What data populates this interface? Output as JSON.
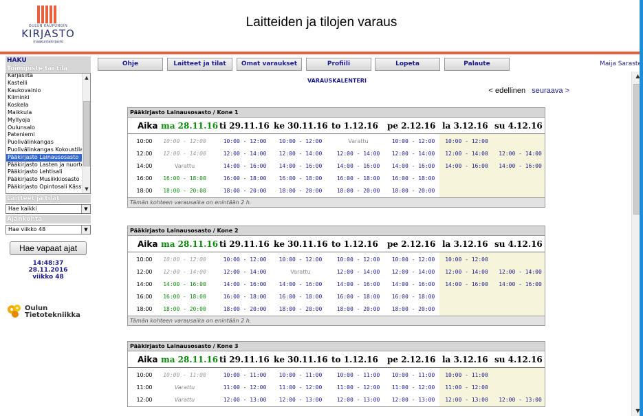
{
  "header": {
    "logo_small": "OULUN KAUPUNGIN",
    "logo_main": "KIRJASTO",
    "logo_sub": "maakuntakirjasto",
    "title": "Laitteiden ja tilojen varaus"
  },
  "sidebar": {
    "haku": "HAKU",
    "location_label": "Toimipiste tai tila",
    "locations": [
      "Karjasilta",
      "Kastelli",
      "Kaukovainio",
      "Kiiminki",
      "Koskela",
      "Maikkula",
      "Myllyoja",
      "Oulunsalo",
      "Pateniemi",
      "Puolivälinkangas",
      "Puolivälinkangas Kokoustila",
      "Pääkirjasto Lainausosasto",
      "Pääkirjasto Lasten ja nuorte",
      "Pääkirjasto Lehtisali",
      "Pääkirjasto Musiikkiosasto",
      "Pääkirjasto Opintosali Kässy"
    ],
    "selected_location": "Pääkirjasto Lainausosasto",
    "devices_label": "Laitteet ja tilat",
    "devices_value": "Hae kaikki",
    "period_label": "Ajankohta",
    "period_value": "Hae viikko 48",
    "search_button": "Hae vapaat ajat",
    "time": "14:48:37",
    "date": "28.11.2016",
    "week": "viikko 48",
    "company_line1": "Oulun",
    "company_line2": "Tietotekniikka"
  },
  "nav": {
    "items": [
      "Ohje",
      "Laitteet ja tilat",
      "Omat varaukset",
      "Profiili",
      "Lopeta",
      "Palaute"
    ],
    "user": "Maija Saraste"
  },
  "calendar": {
    "title": "VARAUSKALENTERI",
    "prev": "< edellinen",
    "next": "seuraava >",
    "aika": "Aika",
    "days": [
      "ma 28.11.16",
      "ti 29.11.16",
      "ke 30.11.16",
      "to 1.12.16",
      "pe 2.12.16",
      "la 3.12.16",
      "su 4.12.16"
    ],
    "footer": "Tämän kohteen varausaika on enintään 2 h.",
    "blocks": [
      {
        "title": "Pääkirjasto Lainausosasto / Kone 1",
        "rows": [
          {
            "time": "10:00",
            "cells": [
              "10:00 - 12:00",
              "10:00 - 12:00",
              "10:00 - 12:00",
              "Varattu",
              "10:00 - 12:00",
              "10:00 - 12:00",
              ""
            ],
            "types": [
              "past",
              "free",
              "free",
              "booked",
              "free",
              "free",
              "empty"
            ]
          },
          {
            "time": "12:00",
            "cells": [
              "12:00 - 14:00",
              "12:00 - 14:00",
              "12:00 - 14:00",
              "12:00 - 14:00",
              "12:00 - 14:00",
              "12:00 - 14:00",
              "12:00 - 14:00"
            ],
            "types": [
              "past",
              "free",
              "free",
              "free",
              "free",
              "free",
              "free"
            ]
          },
          {
            "time": "14:00",
            "cells": [
              "Varattu",
              "14:00 - 16:00",
              "14:00 - 16:00",
              "14:00 - 16:00",
              "14:00 - 16:00",
              "14:00 - 16:00",
              "14:00 - 16:00"
            ],
            "types": [
              "booked",
              "free",
              "free",
              "free",
              "free",
              "free",
              "free"
            ]
          },
          {
            "time": "16:00",
            "cells": [
              "16:00 - 18:00",
              "16:00 - 18:00",
              "16:00 - 18:00",
              "16:00 - 18:00",
              "16:00 - 18:00",
              "",
              ""
            ],
            "types": [
              "green",
              "free",
              "free",
              "free",
              "free",
              "empty",
              "empty"
            ]
          },
          {
            "time": "18:00",
            "cells": [
              "18:00 - 20:00",
              "18:00 - 20:00",
              "18:00 - 20:00",
              "18:00 - 20:00",
              "18:00 - 20:00",
              "",
              ""
            ],
            "types": [
              "green",
              "free",
              "free",
              "free",
              "free",
              "empty",
              "empty"
            ]
          }
        ]
      },
      {
        "title": "Pääkirjasto Lainausosasto / Kone 2",
        "rows": [
          {
            "time": "10:00",
            "cells": [
              "10:00 - 12:00",
              "10:00 - 12:00",
              "10:00 - 12:00",
              "10:00 - 12:00",
              "10:00 - 12:00",
              "10:00 - 12:00",
              ""
            ],
            "types": [
              "past",
              "free",
              "free",
              "free",
              "free",
              "free",
              "empty"
            ]
          },
          {
            "time": "12:00",
            "cells": [
              "12:00 - 14:00",
              "12:00 - 14:00",
              "Varattu",
              "12:00 - 14:00",
              "12:00 - 14:00",
              "12:00 - 14:00",
              "12:00 - 14:00"
            ],
            "types": [
              "past",
              "free",
              "booked",
              "free",
              "free",
              "free",
              "free"
            ]
          },
          {
            "time": "14:00",
            "cells": [
              "14:00 - 16:00",
              "14:00 - 16:00",
              "14:00 - 16:00",
              "14:00 - 16:00",
              "14:00 - 16:00",
              "14:00 - 16:00",
              "14:00 - 16:00"
            ],
            "types": [
              "green",
              "free",
              "free",
              "free",
              "free",
              "free",
              "free"
            ]
          },
          {
            "time": "16:00",
            "cells": [
              "16:00 - 18:00",
              "16:00 - 18:00",
              "16:00 - 18:00",
              "16:00 - 18:00",
              "16:00 - 18:00",
              "",
              ""
            ],
            "types": [
              "green",
              "free",
              "free",
              "free",
              "free",
              "empty",
              "empty"
            ]
          },
          {
            "time": "18:00",
            "cells": [
              "18:00 - 20:00",
              "18:00 - 20:00",
              "18:00 - 20:00",
              "18:00 - 20:00",
              "18:00 - 20:00",
              "",
              ""
            ],
            "types": [
              "green",
              "free",
              "free",
              "free",
              "free",
              "empty",
              "empty"
            ]
          }
        ]
      },
      {
        "title": "Pääkirjasto Lainausosasto / Kone 3",
        "rows": [
          {
            "time": "10:00",
            "cells": [
              "10:00 - 11:00",
              "10:00 - 11:00",
              "10:00 - 11:00",
              "10:00 - 11:00",
              "10:00 - 11:00",
              "10:00 - 11:00",
              ""
            ],
            "types": [
              "past",
              "free",
              "free",
              "free",
              "free",
              "free",
              "empty"
            ]
          },
          {
            "time": "11:00",
            "cells": [
              "Varattu",
              "11:00 - 12:00",
              "11:00 - 12:00",
              "11:00 - 12:00",
              "11:00 - 12:00",
              "11:00 - 12:00",
              ""
            ],
            "types": [
              "booked-past",
              "free",
              "free",
              "free",
              "free",
              "free",
              "empty"
            ]
          },
          {
            "time": "12:00",
            "cells": [
              "Varattu",
              "12:00 - 13:00",
              "12:00 - 13:00",
              "12:00 - 13:00",
              "12:00 - 13:00",
              "12:00 - 13:00",
              "12:00 - 13:00"
            ],
            "types": [
              "booked-past",
              "free",
              "free",
              "free",
              "free",
              "free",
              "free"
            ]
          }
        ]
      }
    ]
  }
}
